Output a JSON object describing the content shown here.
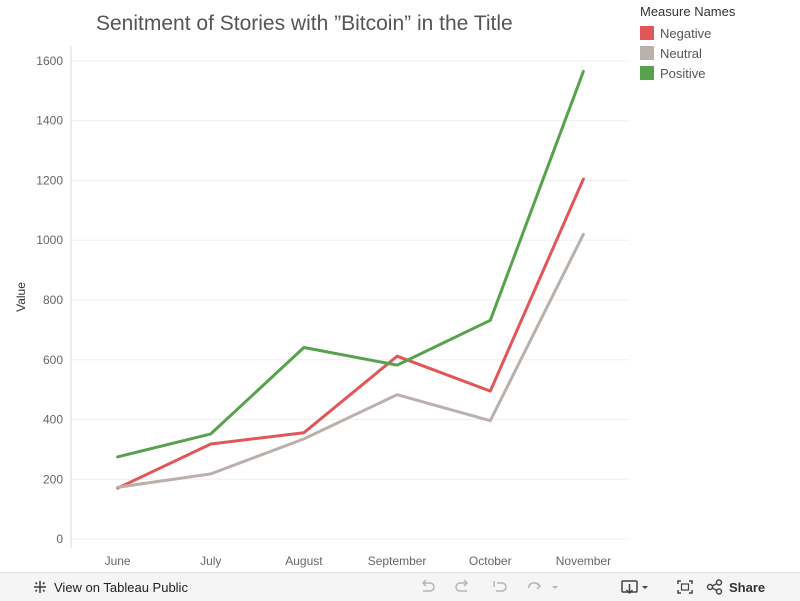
{
  "chart_data": {
    "type": "line",
    "title": "Senitment of Stories with ”Bitcoin” in the Title",
    "xlabel": "",
    "ylabel": "Value",
    "categories": [
      "June",
      "July",
      "August",
      "September",
      "October",
      "November"
    ],
    "yticks": [
      0,
      200,
      400,
      600,
      800,
      1000,
      1200,
      1400,
      1600
    ],
    "ylim": [
      -30,
      1650
    ],
    "grid": true,
    "legend_position": "top-right",
    "legend_title": "Measure Names",
    "series": [
      {
        "name": "Negative",
        "color": "#e15759",
        "values": [
          170,
          318,
          356,
          612,
          495,
          1205
        ]
      },
      {
        "name": "Neutral",
        "color": "#bab0ac",
        "values": [
          173,
          218,
          335,
          483,
          396,
          1020
        ]
      },
      {
        "name": "Positive",
        "color": "#59a14f",
        "values": [
          275,
          352,
          641,
          582,
          732,
          1565
        ]
      }
    ]
  },
  "toolbar": {
    "view_label": "View on Tableau Public",
    "share_label": "Share"
  }
}
